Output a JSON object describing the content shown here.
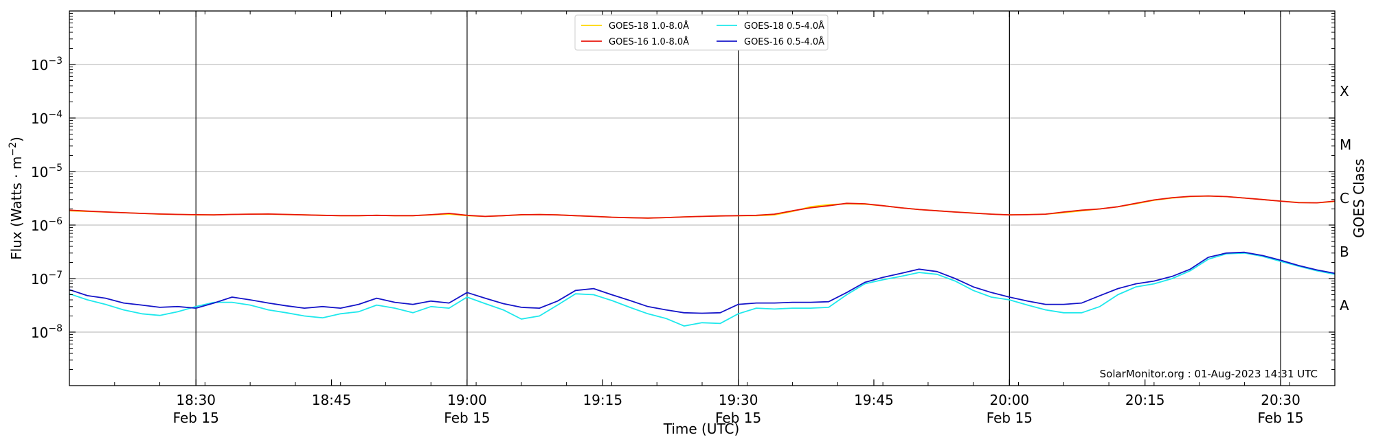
{
  "chart_data": {
    "type": "line",
    "xlabel": "Time (UTC)",
    "ylabel_text": "Flux (Watts · m",
    "ylabel_sup": "−2",
    "ylabel_close": ")",
    "right_ylabel": "GOES Class",
    "y_scale": "log",
    "ylim": [
      1e-09,
      0.01
    ],
    "xlim": [
      "18:16",
      "20:36"
    ],
    "grid": "horizontal",
    "legend_position": "top-center",
    "credit": "SolarMonitor.org : 01-Aug-2023 14:31 UTC",
    "x_date_label": "Feb 15",
    "x_ticks": [
      {
        "t": "18:30",
        "date": true
      },
      {
        "t": "18:45",
        "date": false
      },
      {
        "t": "19:00",
        "date": true
      },
      {
        "t": "19:15",
        "date": false
      },
      {
        "t": "19:30",
        "date": true
      },
      {
        "t": "19:45",
        "date": false
      },
      {
        "t": "20:00",
        "date": true
      },
      {
        "t": "20:15",
        "date": false
      },
      {
        "t": "20:30",
        "date": true
      }
    ],
    "y_ticks": [
      {
        "exp": "-8",
        "value": 1e-08
      },
      {
        "exp": "-7",
        "value": 1e-07
      },
      {
        "exp": "-6",
        "value": 1e-06
      },
      {
        "exp": "-5",
        "value": 1e-05
      },
      {
        "exp": "-4",
        "value": 0.0001
      },
      {
        "exp": "-3",
        "value": 0.001
      }
    ],
    "goes_classes": [
      {
        "label": "A",
        "value": 3.16e-08
      },
      {
        "label": "B",
        "value": 3.16e-07
      },
      {
        "label": "C",
        "value": 3.16e-06
      },
      {
        "label": "M",
        "value": 3.16e-05
      },
      {
        "label": "X",
        "value": 0.000316
      }
    ],
    "x": [
      "18:16",
      "18:18",
      "18:20",
      "18:22",
      "18:24",
      "18:26",
      "18:28",
      "18:30",
      "18:32",
      "18:34",
      "18:36",
      "18:38",
      "18:40",
      "18:42",
      "18:44",
      "18:46",
      "18:48",
      "18:50",
      "18:52",
      "18:54",
      "18:56",
      "18:58",
      "19:00",
      "19:02",
      "19:04",
      "19:06",
      "19:08",
      "19:10",
      "19:12",
      "19:14",
      "19:16",
      "19:18",
      "19:20",
      "19:22",
      "19:24",
      "19:26",
      "19:28",
      "19:30",
      "19:32",
      "19:34",
      "19:36",
      "19:38",
      "19:40",
      "19:42",
      "19:44",
      "19:46",
      "19:48",
      "19:50",
      "19:52",
      "19:54",
      "19:56",
      "19:58",
      "20:00",
      "20:02",
      "20:04",
      "20:06",
      "20:08",
      "20:10",
      "20:12",
      "20:14",
      "20:16",
      "20:18",
      "20:20",
      "20:22",
      "20:24",
      "20:26",
      "20:28",
      "20:30",
      "20:32",
      "20:34",
      "20:36"
    ],
    "series": [
      {
        "name": "GOES-18 1.0-8.0Å",
        "color": "#ffd700",
        "values": [
          1.85e-06,
          1.8e-06,
          1.75e-06,
          1.7e-06,
          1.65e-06,
          1.6e-06,
          1.58e-06,
          1.55e-06,
          1.55e-06,
          1.58e-06,
          1.6e-06,
          1.6e-06,
          1.57e-06,
          1.55e-06,
          1.52e-06,
          1.5e-06,
          1.5e-06,
          1.52e-06,
          1.5e-06,
          1.5e-06,
          1.55e-06,
          1.6e-06,
          1.5e-06,
          1.45e-06,
          1.5e-06,
          1.55e-06,
          1.57e-06,
          1.55e-06,
          1.5e-06,
          1.45e-06,
          1.4e-06,
          1.38e-06,
          1.35e-06,
          1.38e-06,
          1.42e-06,
          1.45e-06,
          1.48e-06,
          1.5e-06,
          1.5e-06,
          1.55e-06,
          1.8e-06,
          2.2e-06,
          2.4e-06,
          2.5e-06,
          2.45e-06,
          2.3e-06,
          2.1e-06,
          1.95e-06,
          1.85e-06,
          1.75e-06,
          1.68e-06,
          1.6e-06,
          1.55e-06,
          1.57e-06,
          1.6e-06,
          1.7e-06,
          1.85e-06,
          2e-06,
          2.2e-06,
          2.5e-06,
          2.9e-06,
          3.2e-06,
          3.4e-06,
          3.5e-06,
          3.4e-06,
          3.2e-06,
          3e-06,
          2.8e-06,
          2.65e-06,
          2.6e-06,
          2.75e-06
        ]
      },
      {
        "name": "GOES-16 1.0-8.0Å",
        "color": "#e8150a",
        "values": [
          1.9e-06,
          1.82e-06,
          1.76e-06,
          1.7e-06,
          1.65e-06,
          1.61e-06,
          1.58e-06,
          1.56e-06,
          1.55e-06,
          1.58e-06,
          1.6e-06,
          1.61e-06,
          1.58e-06,
          1.55e-06,
          1.52e-06,
          1.5e-06,
          1.5e-06,
          1.52e-06,
          1.5e-06,
          1.5e-06,
          1.56e-06,
          1.65e-06,
          1.52e-06,
          1.45e-06,
          1.5e-06,
          1.56e-06,
          1.57e-06,
          1.55e-06,
          1.5e-06,
          1.45e-06,
          1.4e-06,
          1.37e-06,
          1.35e-06,
          1.38e-06,
          1.42e-06,
          1.45e-06,
          1.48e-06,
          1.5e-06,
          1.52e-06,
          1.6e-06,
          1.85e-06,
          2.1e-06,
          2.3e-06,
          2.55e-06,
          2.5e-06,
          2.3e-06,
          2.1e-06,
          1.95e-06,
          1.85e-06,
          1.75e-06,
          1.67e-06,
          1.6e-06,
          1.55e-06,
          1.56e-06,
          1.6e-06,
          1.75e-06,
          1.9e-06,
          2e-06,
          2.2e-06,
          2.55e-06,
          2.95e-06,
          3.25e-06,
          3.45e-06,
          3.5e-06,
          3.4e-06,
          3.2e-06,
          3e-06,
          2.8e-06,
          2.62e-06,
          2.6e-06,
          2.8e-06
        ]
      },
      {
        "name": "GOES-18 0.5-4.0Å",
        "color": "#1ee8ec",
        "values": [
          5.2e-08,
          4e-08,
          3.3e-08,
          2.6e-08,
          2.2e-08,
          2.05e-08,
          2.4e-08,
          3e-08,
          3.6e-08,
          3.6e-08,
          3.2e-08,
          2.6e-08,
          2.3e-08,
          2e-08,
          1.85e-08,
          2.2e-08,
          2.4e-08,
          3.2e-08,
          2.8e-08,
          2.3e-08,
          3e-08,
          2.8e-08,
          4.5e-08,
          3.4e-08,
          2.6e-08,
          1.75e-08,
          2e-08,
          3.2e-08,
          5.2e-08,
          5e-08,
          3.9e-08,
          2.9e-08,
          2.2e-08,
          1.8e-08,
          1.3e-08,
          1.5e-08,
          1.45e-08,
          2.2e-08,
          2.8e-08,
          2.7e-08,
          2.8e-08,
          2.8e-08,
          2.9e-08,
          5e-08,
          8e-08,
          9.5e-08,
          1.1e-07,
          1.3e-07,
          1.2e-07,
          9e-08,
          6e-08,
          4.5e-08,
          4e-08,
          3.2e-08,
          2.6e-08,
          2.3e-08,
          2.3e-08,
          3e-08,
          5e-08,
          7e-08,
          8e-08,
          1e-07,
          1.4e-07,
          2.3e-07,
          2.9e-07,
          3e-07,
          2.6e-07,
          2.1e-07,
          1.7e-07,
          1.4e-07,
          1.2e-07
        ]
      },
      {
        "name": "GOES-16 0.5-4.0Å",
        "color": "#1414c8",
        "values": [
          6.2e-08,
          4.8e-08,
          4.3e-08,
          3.5e-08,
          3.2e-08,
          2.9e-08,
          3e-08,
          2.8e-08,
          3.5e-08,
          4.5e-08,
          4e-08,
          3.5e-08,
          3.1e-08,
          2.8e-08,
          3e-08,
          2.8e-08,
          3.3e-08,
          4.3e-08,
          3.6e-08,
          3.3e-08,
          3.8e-08,
          3.5e-08,
          5.5e-08,
          4.3e-08,
          3.4e-08,
          2.9e-08,
          2.8e-08,
          3.8e-08,
          6e-08,
          6.5e-08,
          5e-08,
          3.9e-08,
          3e-08,
          2.6e-08,
          2.3e-08,
          2.25e-08,
          2.3e-08,
          3.3e-08,
          3.5e-08,
          3.5e-08,
          3.6e-08,
          3.6e-08,
          3.7e-08,
          5.5e-08,
          8.5e-08,
          1.05e-07,
          1.25e-07,
          1.5e-07,
          1.35e-07,
          1e-07,
          7e-08,
          5.5e-08,
          4.5e-08,
          3.8e-08,
          3.3e-08,
          3.3e-08,
          3.5e-08,
          4.8e-08,
          6.5e-08,
          8e-08,
          9e-08,
          1.1e-07,
          1.5e-07,
          2.5e-07,
          3e-07,
          3.1e-07,
          2.7e-07,
          2.2e-07,
          1.75e-07,
          1.45e-07,
          1.25e-07
        ]
      }
    ]
  }
}
